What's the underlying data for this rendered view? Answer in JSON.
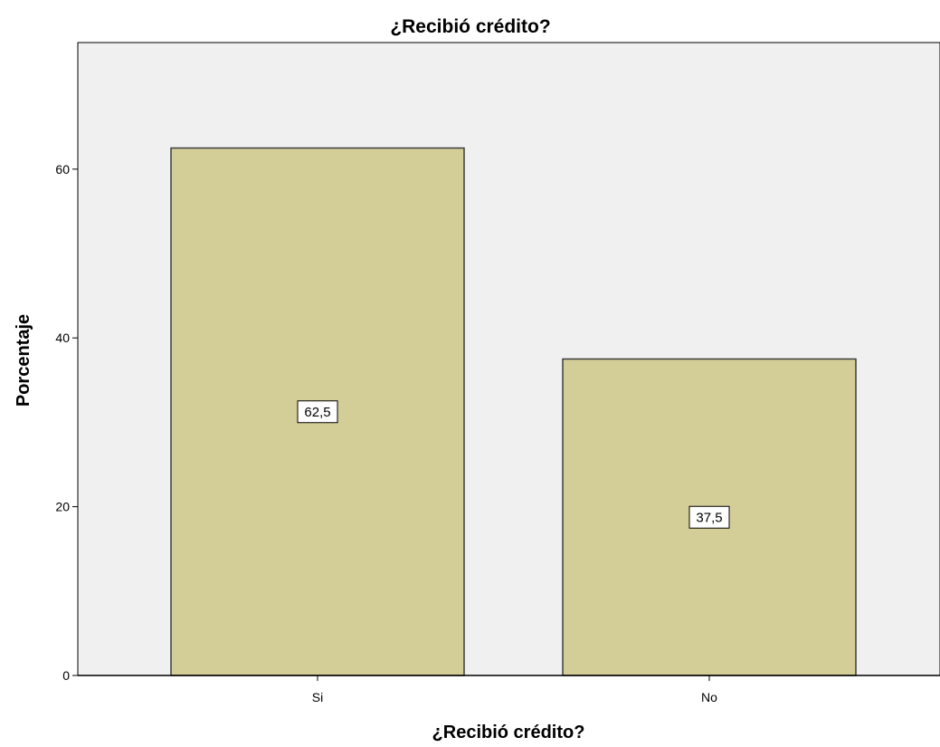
{
  "chart_data": {
    "type": "bar",
    "title": "¿Recibió crédito?",
    "xlabel": "¿Recibió crédito?",
    "ylabel": "Porcentaje",
    "categories": [
      "Si",
      "No"
    ],
    "values": [
      62.5,
      37.5
    ],
    "data_labels": [
      "62,5",
      "37,5"
    ],
    "ylim": [
      0,
      75
    ],
    "yticks": [
      0,
      20,
      40,
      60
    ],
    "ytick_labels": [
      "0",
      "20",
      "40",
      "60"
    ],
    "grid": false,
    "legend": "none",
    "colors": {
      "bar_fill": "#d3ce98",
      "bar_stroke": "#3d3d3d",
      "plot_background": "#f0f0f0",
      "axis": "#000000",
      "label_box_fill": "#ffffff"
    }
  }
}
